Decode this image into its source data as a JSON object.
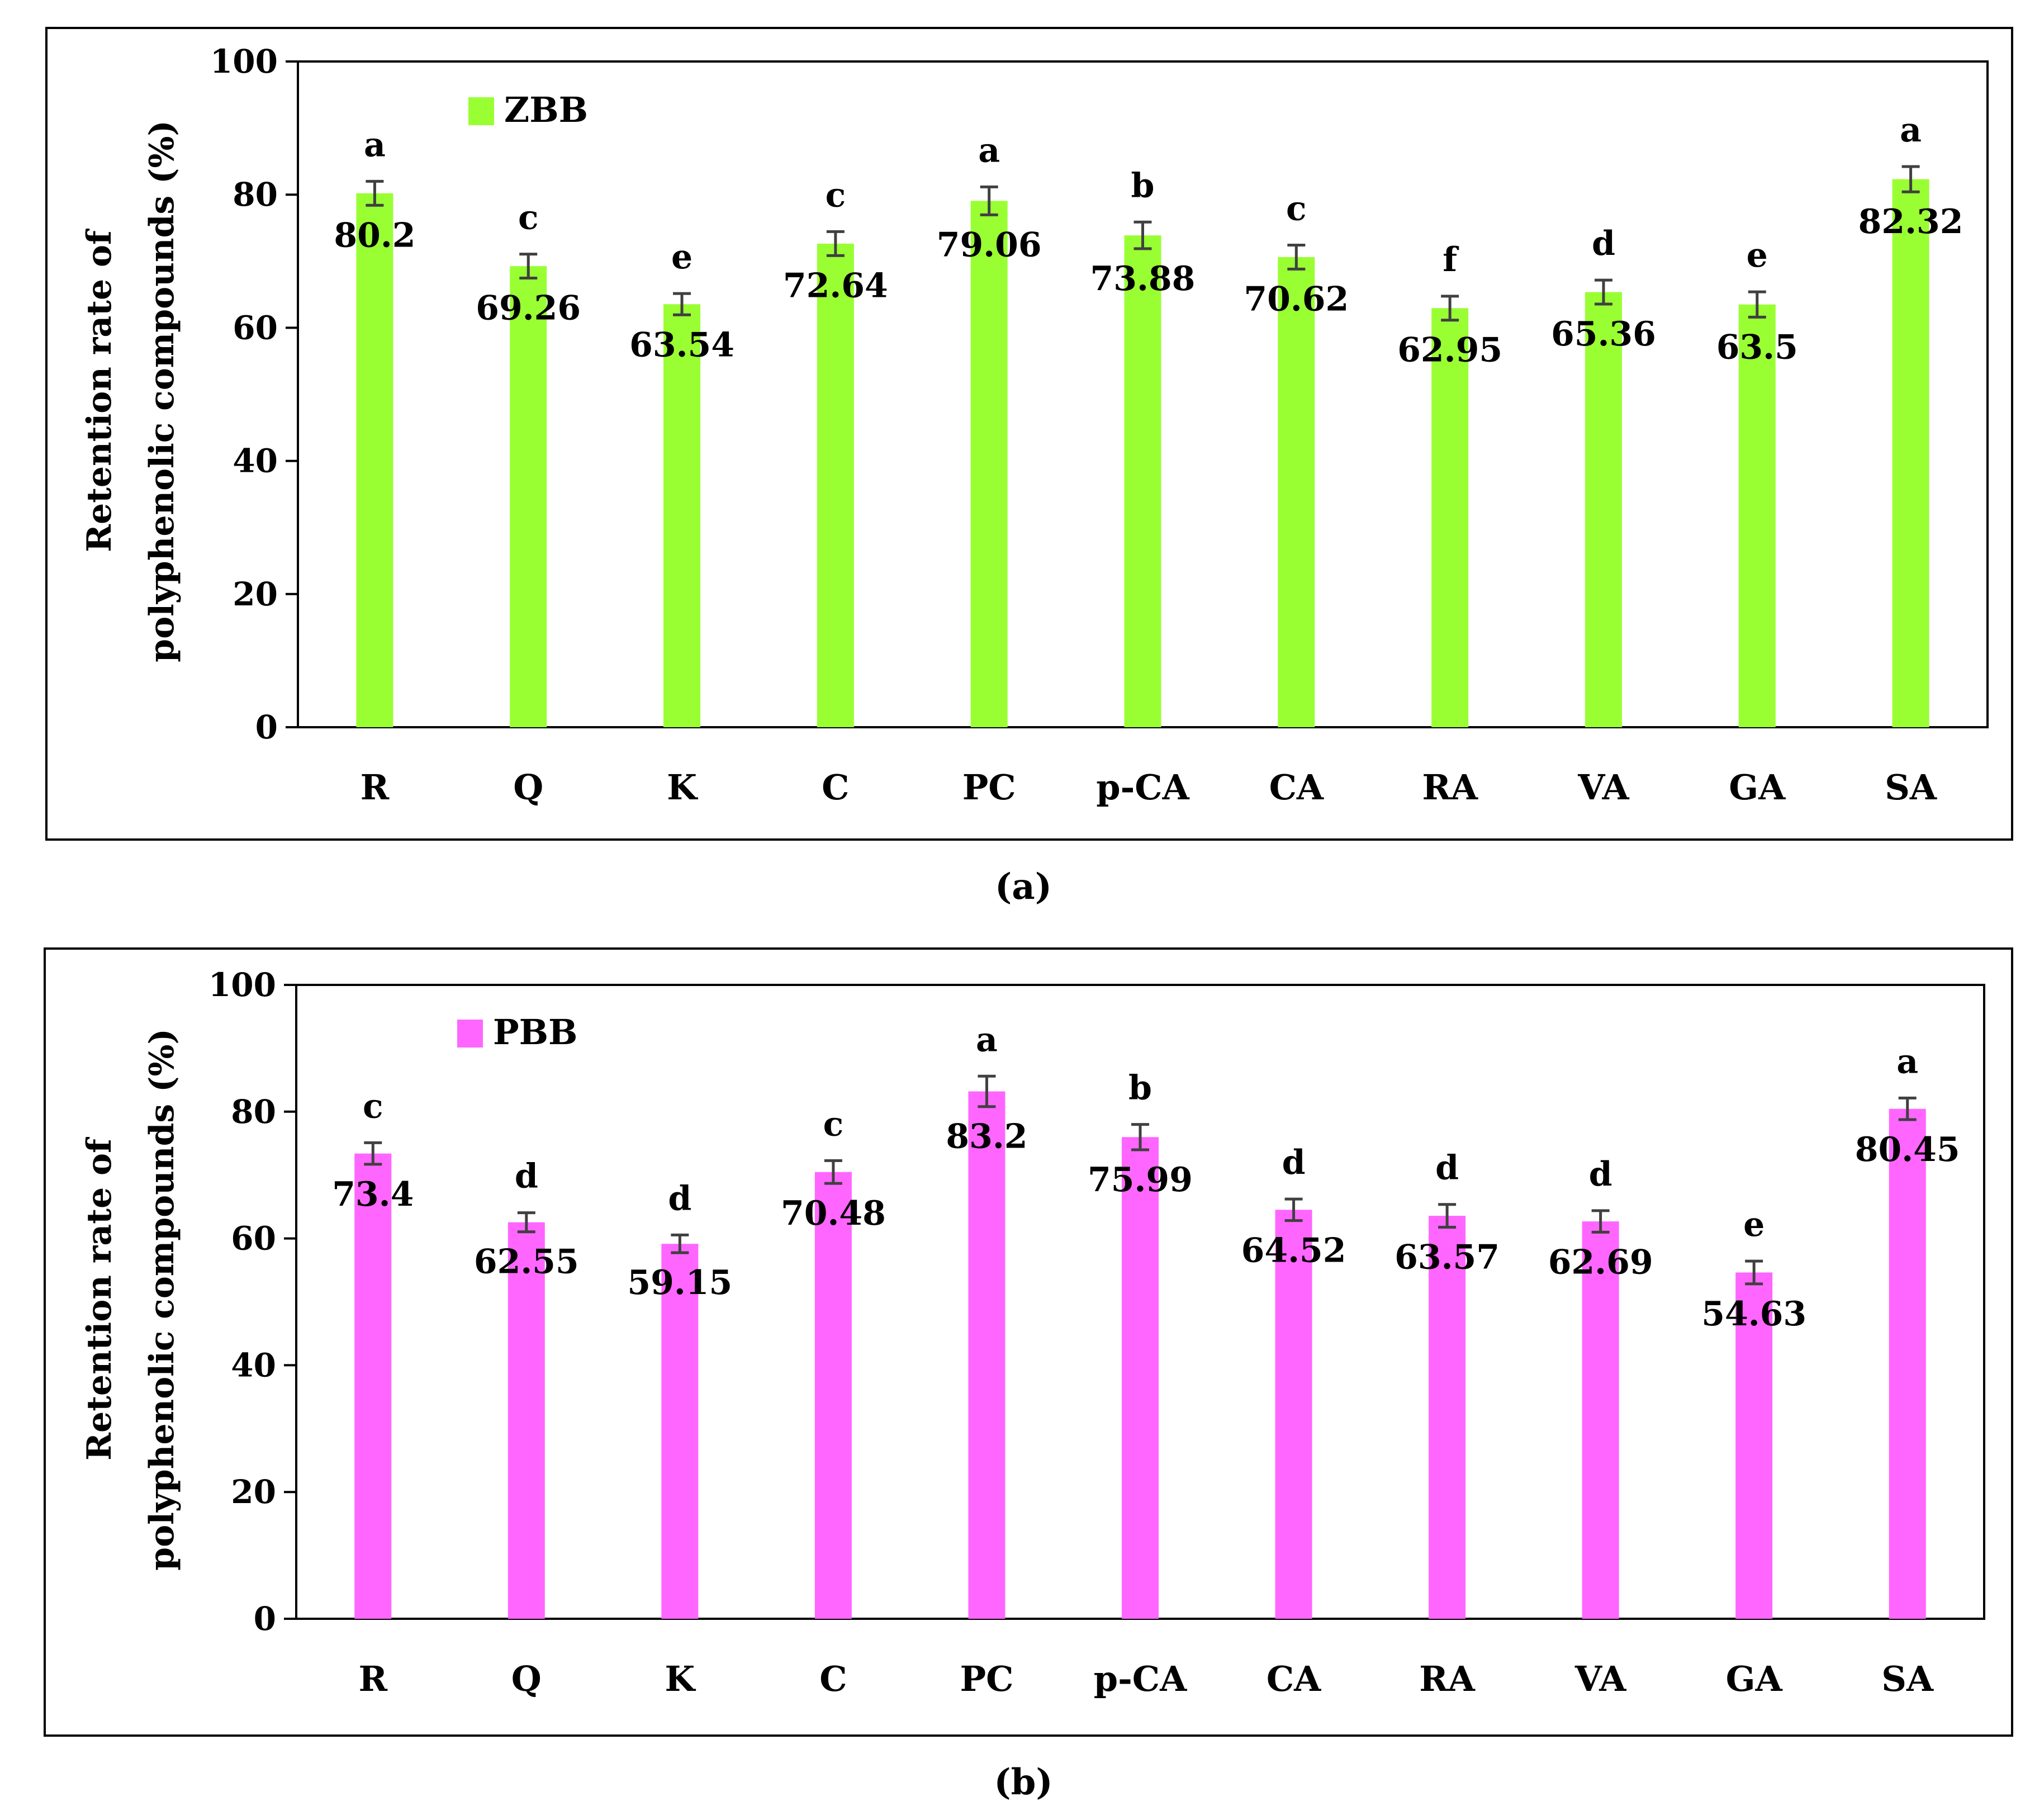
{
  "chart_data": [
    {
      "type": "bar",
      "panel_label": "(a)",
      "legend": "ZBB",
      "color": "#99ff33",
      "ylabel_line1": "Retention rate of",
      "ylabel_line2": "polyphenolic compounds (%)",
      "ylim": [
        0,
        100
      ],
      "yticks": [
        0,
        20,
        40,
        60,
        80,
        100
      ],
      "categories": [
        "R",
        "Q",
        "K",
        "C",
        "PC",
        "p-CA",
        "CA",
        "RA",
        "VA",
        "GA",
        "SA"
      ],
      "values": [
        80.2,
        69.26,
        63.54,
        72.64,
        79.06,
        73.88,
        70.62,
        62.95,
        65.36,
        63.5,
        82.32
      ],
      "value_labels": [
        "80.2",
        "69.26",
        "63.54",
        "72.64",
        "79.06",
        "73.88",
        "70.62",
        "62.95",
        "65.36",
        "63.5",
        "82.32"
      ],
      "errors": [
        1.8,
        1.8,
        1.6,
        1.8,
        2.1,
        2.0,
        1.8,
        1.8,
        1.8,
        1.9,
        1.9
      ],
      "letters": [
        "a",
        "c",
        "e",
        "c",
        "a",
        "b",
        "c",
        "f",
        "d",
        "e",
        "a"
      ]
    },
    {
      "type": "bar",
      "panel_label": "(b)",
      "legend": "PBB",
      "color": "#ff66ff",
      "ylabel_line1": "Retention rate of",
      "ylabel_line2": "polyphenolic compounds (%)",
      "ylim": [
        0,
        100
      ],
      "yticks": [
        0,
        20,
        40,
        60,
        80,
        100
      ],
      "categories": [
        "R",
        "Q",
        "K",
        "C",
        "PC",
        "p-CA",
        "CA",
        "RA",
        "VA",
        "GA",
        "SA"
      ],
      "values": [
        73.4,
        62.55,
        59.15,
        70.48,
        83.2,
        75.99,
        64.52,
        63.57,
        62.69,
        54.63,
        80.45
      ],
      "value_labels": [
        "73.4",
        "62.55",
        "59.15",
        "70.48",
        "83.2",
        "75.99",
        "64.52",
        "63.57",
        "62.69",
        "54.63",
        "80.45"
      ],
      "errors": [
        1.7,
        1.5,
        1.4,
        1.8,
        2.4,
        2.0,
        1.7,
        1.8,
        1.7,
        1.8,
        1.7
      ],
      "letters": [
        "c",
        "d",
        "d",
        "c",
        "a",
        "b",
        "d",
        "d",
        "d",
        "e",
        "a"
      ]
    }
  ]
}
